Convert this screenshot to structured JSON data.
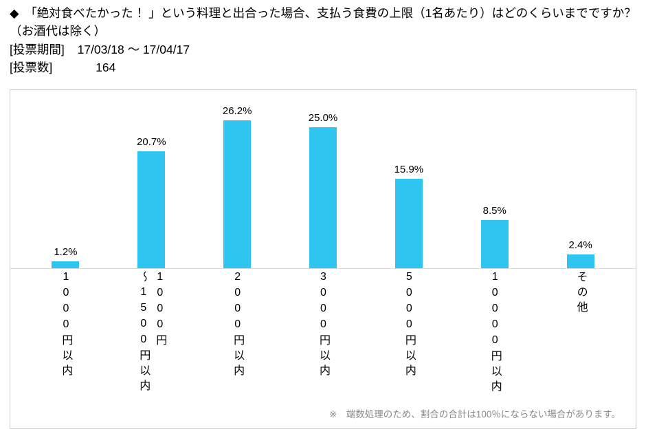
{
  "header": {
    "title": "◆　「絶対食べたかった ！」という料理と出合った場合、支払う食費の上限（1名あたり）はどのくらいまでですか？（お酒代は除く）",
    "period_label": "[投票期間]",
    "period_value": "17/03/18 ～ 17/04/17",
    "count_label": "[投票数]",
    "count_value": "164"
  },
  "chart_data": {
    "type": "bar",
    "title": "「絶対食べたかった！」という料理と出合った場合、支払う食費の上限（1名あたり）はどのくらいまでですか？（お酒代は除く）",
    "categories": [
      "1000円以内",
      "1000円\n～1500円以内",
      "2000円以内",
      "3000円以内",
      "5000円以内",
      "10000円以内",
      "その他"
    ],
    "values": [
      1.2,
      20.7,
      26.2,
      25.0,
      15.9,
      8.5,
      2.4
    ],
    "value_suffix": "%",
    "bar_color": "#2EC6F0",
    "axis_color": "#d9d9d9",
    "ylim": [
      0,
      30
    ],
    "legend": "none",
    "grid": "off",
    "footnote": "※　端数処理のため、割合の合計は100％にならない場合があります。"
  }
}
